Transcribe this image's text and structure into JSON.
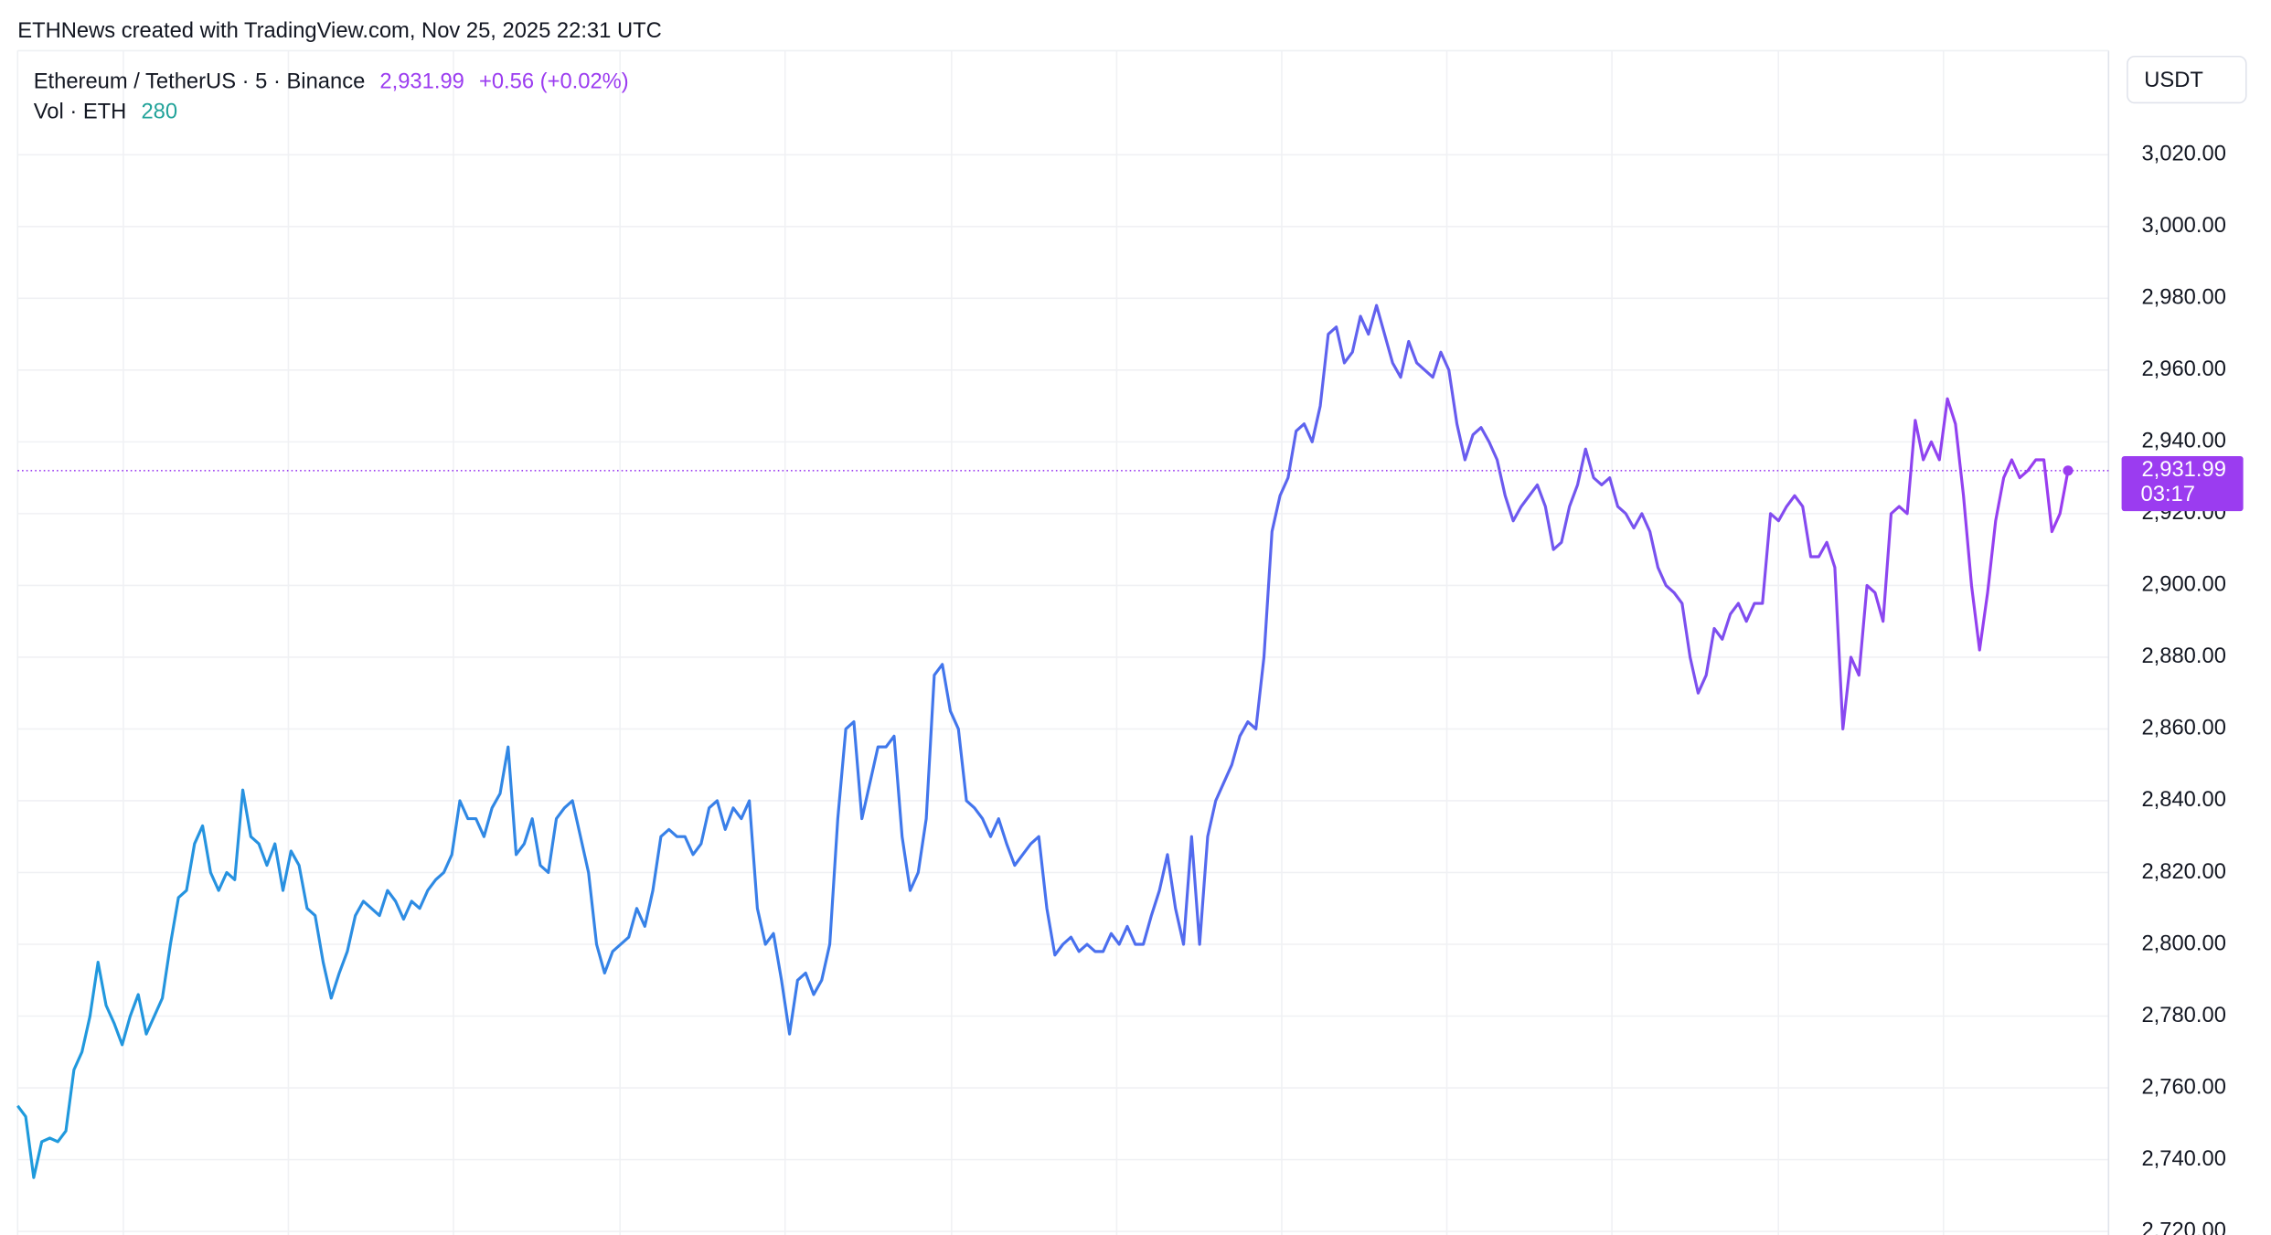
{
  "header": "ETHNews created with TradingView.com, Nov 25, 2025 22:31 UTC",
  "chart_data": {
    "type": "line",
    "symbol": "Ethereum / TetherUS · 5 · Binance",
    "last_price": {
      "value": 2931.99,
      "label": "2,931.99"
    },
    "change": "+0.56 (+0.02%)",
    "volume_label": "Vol · ETH",
    "volume_last": 280,
    "currency": "USDT",
    "countdown": "03:17",
    "ylim": [
      2719,
      3049
    ],
    "yticks": [
      {
        "value": 2720,
        "label": "2,720.00"
      },
      {
        "value": 2740,
        "label": "2,740.00"
      },
      {
        "value": 2760,
        "label": "2,760.00"
      },
      {
        "value": 2780,
        "label": "2,780.00"
      },
      {
        "value": 2800,
        "label": "2,800.00"
      },
      {
        "value": 2820,
        "label": "2,820.00"
      },
      {
        "value": 2840,
        "label": "2,840.00"
      },
      {
        "value": 2860,
        "label": "2,860.00"
      },
      {
        "value": 2880,
        "label": "2,880.00"
      },
      {
        "value": 2900,
        "label": "2,900.00"
      },
      {
        "value": 2920,
        "label": "2,920.00"
      },
      {
        "value": 2940,
        "label": "2,940.00"
      },
      {
        "value": 2960,
        "label": "2,960.00"
      },
      {
        "value": 2980,
        "label": "2,980.00"
      },
      {
        "value": 3000,
        "label": "3,000.00"
      },
      {
        "value": 3020,
        "label": "3,020.00"
      }
    ],
    "grid": true,
    "series": [
      {
        "colors": [
          "#1e9bdc",
          "#4672ee",
          "#9b3cf0"
        ],
        "values": [
          2755,
          2752,
          2735,
          2745,
          2746,
          2745,
          2748,
          2765,
          2770,
          2780,
          2795,
          2783,
          2778,
          2772,
          2780,
          2786,
          2775,
          2780,
          2785,
          2800,
          2813,
          2815,
          2828,
          2833,
          2820,
          2815,
          2820,
          2818,
          2843,
          2830,
          2828,
          2822,
          2828,
          2815,
          2826,
          2822,
          2810,
          2808,
          2795,
          2785,
          2792,
          2798,
          2808,
          2812,
          2810,
          2808,
          2815,
          2812,
          2807,
          2812,
          2810,
          2815,
          2818,
          2820,
          2825,
          2840,
          2835,
          2835,
          2830,
          2838,
          2842,
          2855,
          2825,
          2828,
          2835,
          2822,
          2820,
          2835,
          2838,
          2840,
          2830,
          2820,
          2800,
          2792,
          2798,
          2800,
          2802,
          2810,
          2805,
          2815,
          2830,
          2832,
          2830,
          2830,
          2825,
          2828,
          2838,
          2840,
          2832,
          2838,
          2835,
          2840,
          2810,
          2800,
          2803,
          2790,
          2775,
          2790,
          2792,
          2786,
          2790,
          2800,
          2835,
          2860,
          2862,
          2835,
          2845,
          2855,
          2855,
          2858,
          2830,
          2815,
          2820,
          2835,
          2875,
          2878,
          2865,
          2860,
          2840,
          2838,
          2835,
          2830,
          2835,
          2828,
          2822,
          2825,
          2828,
          2830,
          2810,
          2797,
          2800,
          2802,
          2798,
          2800,
          2798,
          2798,
          2803,
          2800,
          2805,
          2800,
          2800,
          2808,
          2815,
          2825,
          2810,
          2800,
          2830,
          2800,
          2830,
          2840,
          2845,
          2850,
          2858,
          2862,
          2860,
          2880,
          2915,
          2925,
          2930,
          2943,
          2945,
          2940,
          2950,
          2970,
          2972,
          2962,
          2965,
          2975,
          2970,
          2978,
          2970,
          2962,
          2958,
          2968,
          2962,
          2960,
          2958,
          2965,
          2960,
          2945,
          2935,
          2942,
          2944,
          2940,
          2935,
          2925,
          2918,
          2922,
          2925,
          2928,
          2922,
          2910,
          2912,
          2922,
          2928,
          2938,
          2930,
          2928,
          2930,
          2922,
          2920,
          2916,
          2920,
          2915,
          2905,
          2900,
          2898,
          2895,
          2880,
          2870,
          2875,
          2888,
          2885,
          2892,
          2895,
          2890,
          2895,
          2895,
          2920,
          2918,
          2922,
          2925,
          2922,
          2908,
          2908,
          2912,
          2905,
          2860,
          2880,
          2875,
          2900,
          2898,
          2890,
          2920,
          2922,
          2920,
          2946,
          2935,
          2940,
          2935,
          2952,
          2945,
          2925,
          2900,
          2882,
          2898,
          2918,
          2930,
          2935,
          2930,
          2932,
          2935,
          2935,
          2915,
          2920,
          2931.99
        ]
      }
    ]
  }
}
